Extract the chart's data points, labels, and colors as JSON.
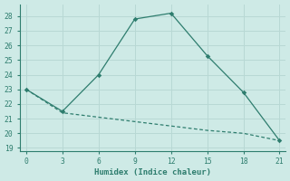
{
  "line1_x": [
    0,
    3,
    6,
    9,
    12,
    15,
    18,
    21
  ],
  "line1_y": [
    23,
    21.5,
    24,
    27.8,
    28.2,
    25.3,
    22.8,
    19.5
  ],
  "line2_x": [
    0,
    3,
    6,
    9,
    12,
    15,
    18,
    21
  ],
  "line2_y": [
    23,
    21.4,
    21.1,
    20.8,
    20.5,
    20.2,
    20.0,
    19.5
  ],
  "line_color": "#2e7d6e",
  "xlabel": "Humidex (Indice chaleur)",
  "xlim": [
    -0.5,
    21.5
  ],
  "ylim": [
    18.8,
    28.8
  ],
  "xticks": [
    0,
    3,
    6,
    9,
    12,
    15,
    18,
    21
  ],
  "yticks": [
    19,
    20,
    21,
    22,
    23,
    24,
    25,
    26,
    27,
    28
  ],
  "bg_color": "#ceeae6",
  "grid_color": "#b8d8d4",
  "font_color": "#2e7d6e",
  "spine_color": "#2e7d6e"
}
